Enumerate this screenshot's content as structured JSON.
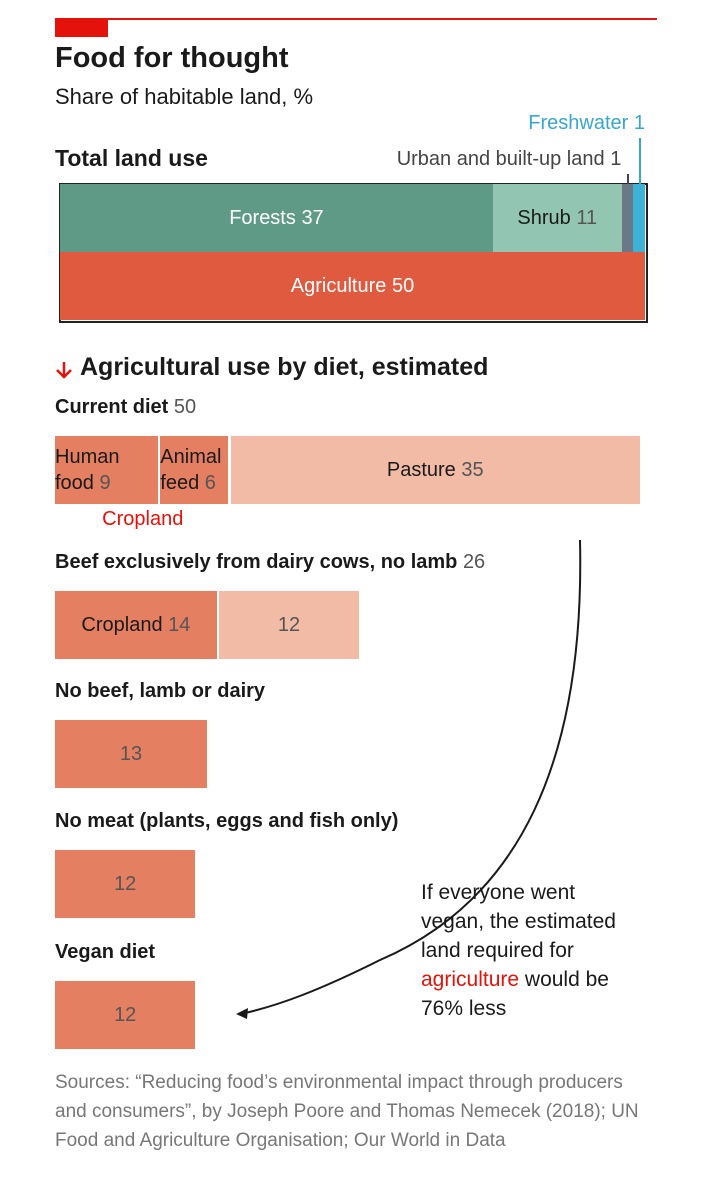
{
  "header": {
    "title": "Food for thought",
    "subtitle": "Share of habitable land, %"
  },
  "chart_data": [
    {
      "type": "stacked-bar",
      "title": "Total land use",
      "xlim": [
        0,
        50
      ],
      "rows": [
        {
          "segments": [
            {
              "name": "Forests",
              "value": 37,
              "color": "#5f9a86"
            },
            {
              "name": "Shrub",
              "value": 11,
              "color": "#92c6b3"
            },
            {
              "name": "Urban and built-up land",
              "value": 1,
              "color": "#6b7888"
            },
            {
              "name": "Freshwater",
              "value": 1,
              "color": "#3db1d6"
            }
          ]
        },
        {
          "segments": [
            {
              "name": "Agriculture",
              "value": 50,
              "color": "#df5a3e"
            }
          ]
        }
      ]
    },
    {
      "type": "stacked-bar",
      "title": "Agricultural use by diet, estimated",
      "xlim": [
        0,
        50
      ],
      "rows": [
        {
          "label": "Current diet",
          "total": 50,
          "group_label": "Cropland",
          "segments": [
            {
              "name": "Human food",
              "value": 9,
              "color": "#e57f62"
            },
            {
              "name": "Animal feed",
              "value": 6,
              "color": "#e57f62"
            },
            {
              "name": "Pasture",
              "value": 35,
              "color": "#f2bba6"
            }
          ]
        },
        {
          "label": "Beef exclusively from dairy cows, no lamb",
          "total": 26,
          "segments": [
            {
              "name": "Cropland",
              "value": 14,
              "color": "#e57f62"
            },
            {
              "name": null,
              "value": 12,
              "color": "#f2bba6"
            }
          ]
        },
        {
          "label": "No beef, lamb or dairy",
          "segments": [
            {
              "name": null,
              "value": 13,
              "color": "#e57f62"
            }
          ]
        },
        {
          "label": "No meat (plants, eggs and fish only)",
          "segments": [
            {
              "name": null,
              "value": 12,
              "color": "#e57f62"
            }
          ]
        },
        {
          "label": "Vegan diet",
          "segments": [
            {
              "name": null,
              "value": 12,
              "color": "#e57f62"
            }
          ]
        }
      ],
      "annotation": [
        "If everyone went vegan, the estimated land required for ",
        "agriculture",
        " would be 76% less"
      ]
    }
  ],
  "footer": {
    "source": "Sources: “Reducing food’s environmental impact through producers and consumers”, by Joseph Poore and Thomas Nemecek (2018); UN Food and Agriculture Organisation; Our World in Data"
  }
}
